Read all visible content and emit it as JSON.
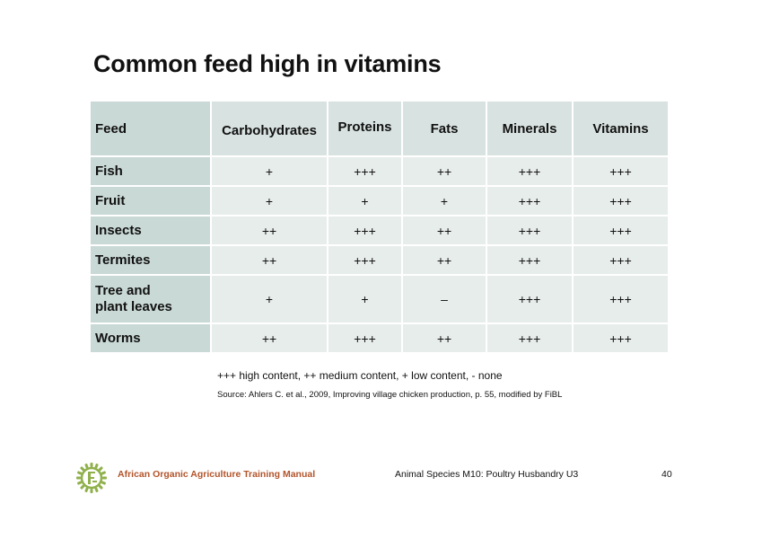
{
  "slide": {
    "title": "Common feed high in vitamins"
  },
  "table": {
    "headers": [
      "Feed",
      "Carbohydrates",
      "Proteins",
      "Fats",
      "Minerals",
      "Vitamins"
    ],
    "rows": [
      {
        "feed": "Fish",
        "carbohydrates": "+",
        "proteins": "+++",
        "fats": "++",
        "minerals": "+++",
        "vitamins": "+++"
      },
      {
        "feed": "Fruit",
        "carbohydrates": "+",
        "proteins": "+",
        "fats": "+",
        "minerals": "+++",
        "vitamins": "+++"
      },
      {
        "feed": "Insects",
        "carbohydrates": "++",
        "proteins": "+++",
        "fats": "++",
        "minerals": "+++",
        "vitamins": "+++"
      },
      {
        "feed": "Termites",
        "carbohydrates": "++",
        "proteins": "+++",
        "fats": "++",
        "minerals": "+++",
        "vitamins": "+++"
      },
      {
        "feed_line1": "Tree and",
        "feed_line2": "plant leaves",
        "carbohydrates": "+",
        "proteins": "+",
        "fats": "–",
        "minerals": "+++",
        "vitamins": "+++"
      },
      {
        "feed": "Worms",
        "carbohydrates": "++",
        "proteins": "+++",
        "fats": "++",
        "minerals": "+++",
        "vitamins": "+++"
      }
    ]
  },
  "legend": "+++ high content, ++ medium content, + low content, - none",
  "source": "Source: Ahlers C. et al., 2009, Improving village chicken production, p. 55, modified by FiBL",
  "footer": {
    "manual": "African Organic Agriculture Training Manual",
    "module": "Animal Species M10: Poultry Husbandry U3",
    "page": "40"
  },
  "colors": {
    "header_bg": "#d8e2e0",
    "feed_col_bg": "#c9d9d6",
    "cell_bg": "#e7edeb",
    "manual_text": "#b2542a",
    "logo": "#8fb04a"
  },
  "icons": {
    "logo": "aoatm-sun-logo-icon"
  }
}
